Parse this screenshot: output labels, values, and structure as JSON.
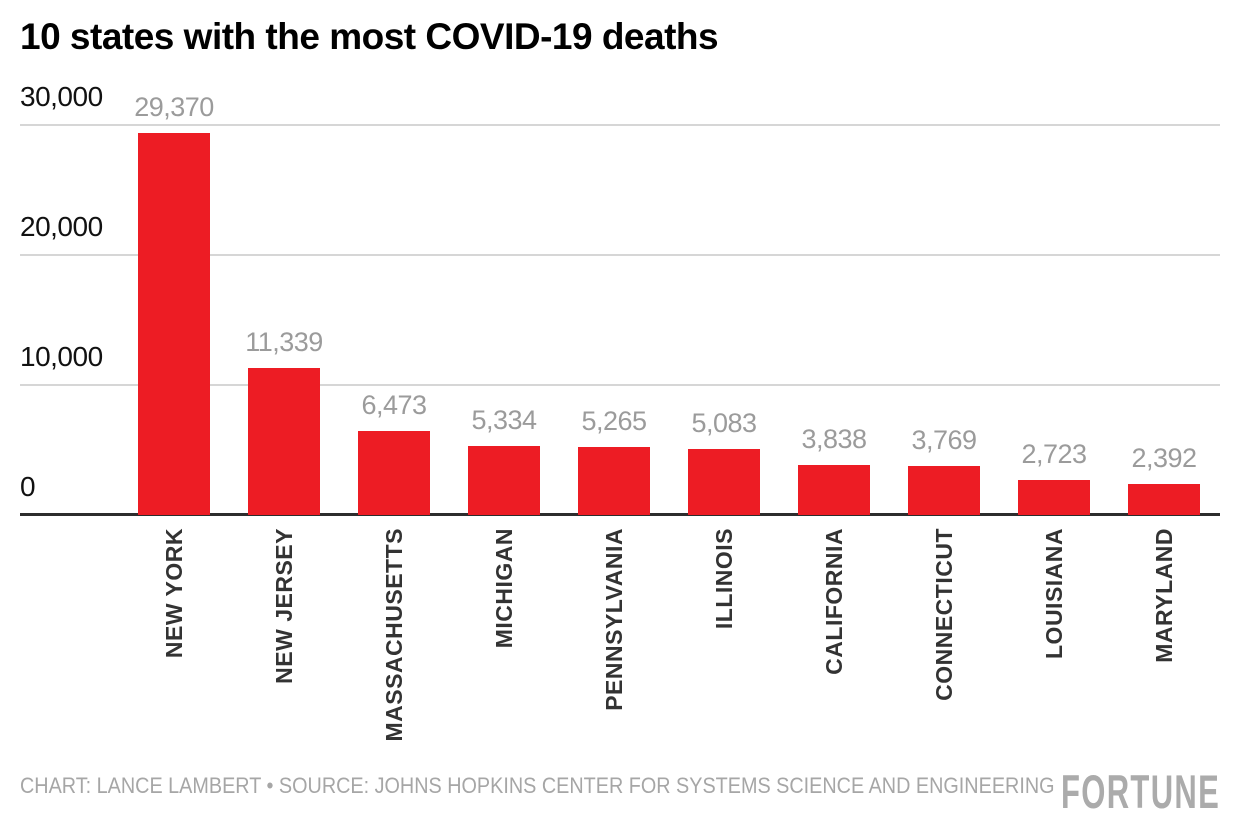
{
  "title": "10 states with the most COVID-19 deaths",
  "footer": {
    "credit": "CHART: LANCE LAMBERT • SOURCE: JOHNS HOPKINS CENTER FOR SYSTEMS SCIENCE AND ENGINEERING",
    "logo": "FORTUNE"
  },
  "colors": {
    "bar": "#ED1C24",
    "gridline": "#D6D6D6",
    "axis": "#2D2D2D",
    "value_label": "#9B9B9B",
    "category_label": "#333333",
    "footer_text": "#A6A6A6",
    "logo_text": "#ABABAB"
  },
  "chart_data": {
    "type": "bar",
    "title": "10 states with the most COVID-19 deaths",
    "categories": [
      "NEW YORK",
      "NEW JERSEY",
      "MASSACHUSETTS",
      "MICHIGAN",
      "PENNSYLVANIA",
      "ILLINOIS",
      "CALIFORNIA",
      "CONNECTICUT",
      "LOUISIANA",
      "MARYLAND"
    ],
    "values": [
      29370,
      11339,
      6473,
      5334,
      5265,
      5083,
      3838,
      3769,
      2723,
      2392
    ],
    "value_labels": [
      "29,370",
      "11,339",
      "6,473",
      "5,334",
      "5,265",
      "5,083",
      "3,838",
      "3,769",
      "2,723",
      "2,392"
    ],
    "yticks": [
      {
        "label": "30,000",
        "value": 30000
      },
      {
        "label": "20,000",
        "value": 20000
      },
      {
        "label": "10,000",
        "value": 10000
      },
      {
        "label": "0",
        "value": 0
      }
    ],
    "ylim": [
      0,
      30000
    ],
    "grid": "horizontal",
    "legend": "none",
    "bar_color": "#ED1C24"
  }
}
